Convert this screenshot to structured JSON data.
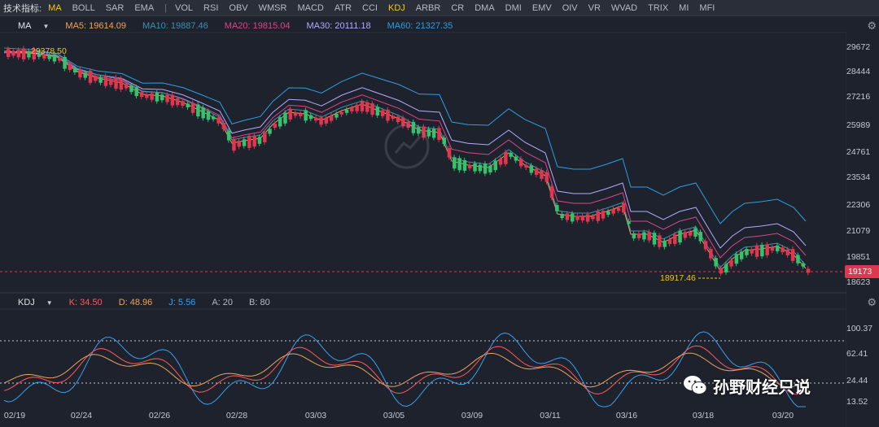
{
  "toolbar": {
    "label": "技术指标:",
    "items": [
      "MA",
      "BOLL",
      "SAR",
      "EMA",
      "|",
      "VOL",
      "RSI",
      "OBV",
      "WMSR",
      "MACD",
      "ATR",
      "CCI",
      "KDJ",
      "ARBR",
      "CR",
      "DMA",
      "DMI",
      "EMV",
      "OIV",
      "VR",
      "WVAD",
      "TRIX",
      "MI",
      "MFI"
    ],
    "active_items": [
      "MA",
      "KDJ"
    ]
  },
  "main_legend": {
    "indicator": "MA",
    "ma5": {
      "label": "MA5: 19614.09",
      "color": "#f0a35a"
    },
    "ma10": {
      "label": "MA10: 19887.46",
      "color": "#3f8fb5"
    },
    "ma20": {
      "label": "MA20: 19815.04",
      "color": "#d9468a"
    },
    "ma30": {
      "label": "MA30: 20111.18",
      "color": "#b3a9ff"
    },
    "ma60": {
      "label": "MA60: 21327.35",
      "color": "#2f9ee0"
    }
  },
  "kdj_legend": {
    "indicator": "KDJ",
    "k": {
      "label": "K: 34.50",
      "color": "#ff5a5a"
    },
    "d": {
      "label": "D: 48.96",
      "color": "#f0a35a"
    },
    "j": {
      "label": "J: 5.56",
      "color": "#3aa0f0"
    },
    "a": {
      "label": "A: 20"
    },
    "b": {
      "label": "B: 80"
    }
  },
  "price_axis": [
    "29672",
    "28444",
    "27216",
    "25989",
    "24761",
    "23534",
    "22306",
    "21079",
    "19851",
    "18623"
  ],
  "kdj_axis": [
    "100.37",
    "62.41",
    "24.44",
    "13.52"
  ],
  "date_axis": [
    "02/19",
    "02/24",
    "02/26",
    "02/28",
    "03/03",
    "03/05",
    "03/09",
    "03/11",
    "03/16",
    "03/18",
    "03/20"
  ],
  "current_price": "19173",
  "high_marker": "29378.50",
  "low_marker": "18917.46",
  "colors": {
    "up": "#35c26d",
    "down": "#e0364f",
    "background": "#1e222d",
    "accent": "#f5c518"
  },
  "watermark": {
    "text": "孙野财经只说",
    "icon": "wechat-icon"
  },
  "icons": {
    "settings": "gear-icon",
    "dropdown": "chevron-down-icon"
  }
}
